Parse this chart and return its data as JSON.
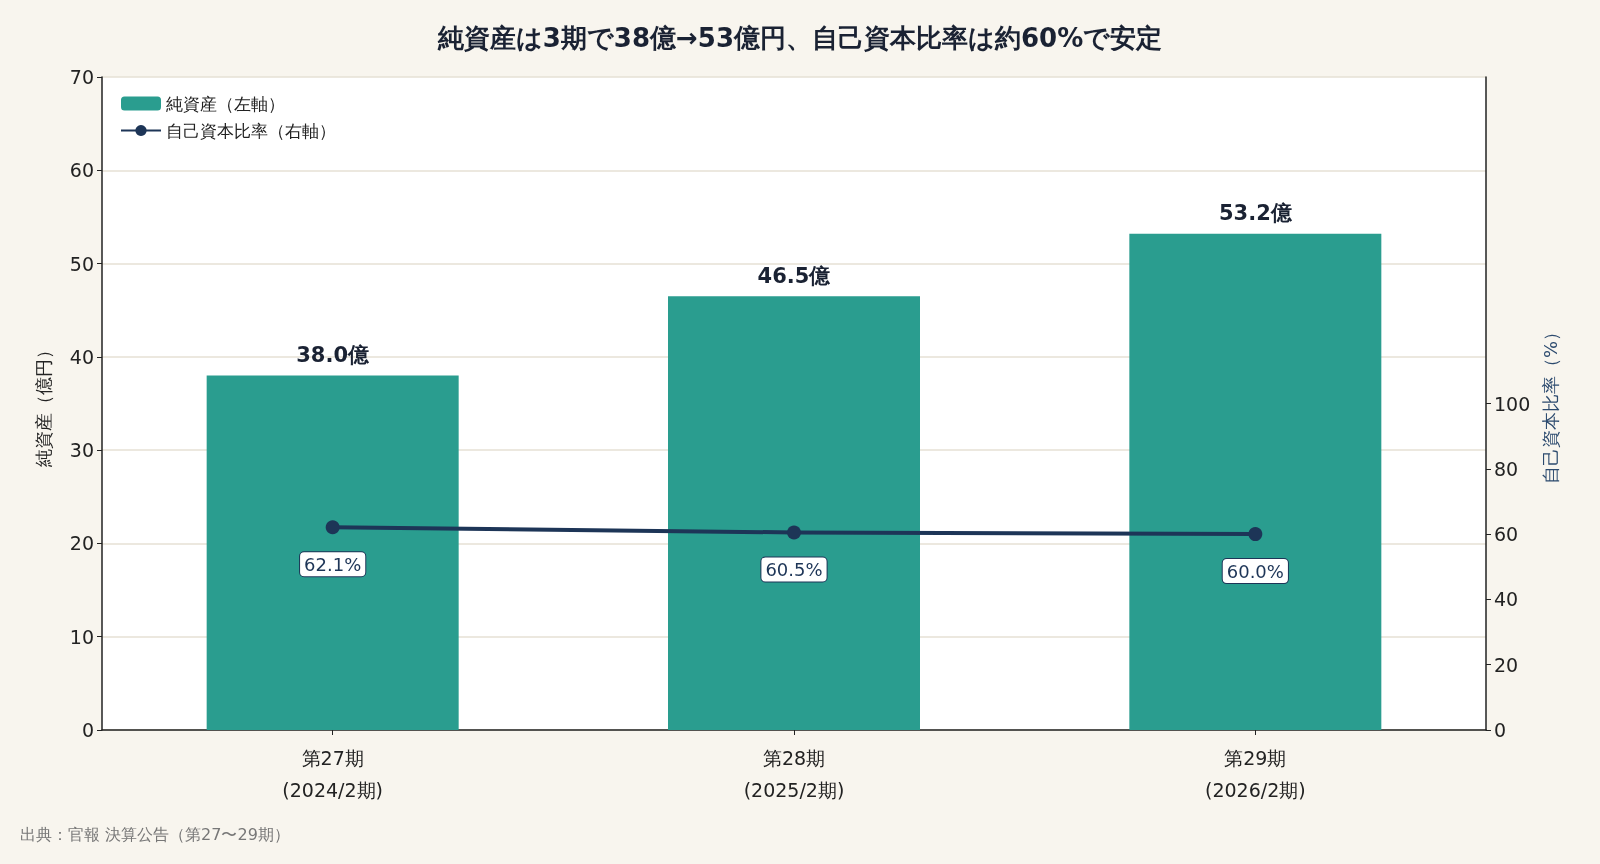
{
  "chart_data": {
    "type": "bar",
    "title": "純資産は3期で38億→53億円、自己資本比率は約60%で安定",
    "categories": [
      "第27期\n(2024/2期)",
      "第28期\n(2025/2期)",
      "第29期\n(2026/2期)"
    ],
    "ylabel": "純資産（億円）",
    "y2label": "自己資本比率（%）",
    "series": [
      {
        "name": "純資産（左軸）",
        "color": "#2a9d8f",
        "values": [
          38.0,
          46.5,
          53.2
        ],
        "value_labels": [
          "38.0億",
          "46.5億",
          "53.2億"
        ]
      },
      {
        "name": "自己資本比率（右軸）",
        "type": "line",
        "axis": "y2",
        "color": "#1d3557",
        "values": [
          62.1,
          60.5,
          60.0
        ],
        "value_labels": [
          "62.1%",
          "60.5%",
          "60.0%"
        ],
        "marker": "circle"
      }
    ],
    "ylim": [
      0,
      70
    ],
    "yticks": [
      0,
      10,
      20,
      30,
      40,
      50,
      60,
      70
    ],
    "y2lim": [
      0,
      200
    ],
    "y2ticks": [
      0,
      20,
      40,
      60,
      80,
      100
    ],
    "grid": "y",
    "legend": "top left",
    "annotations": [
      "出典：官報 決算公告（第27〜29期）"
    ]
  }
}
